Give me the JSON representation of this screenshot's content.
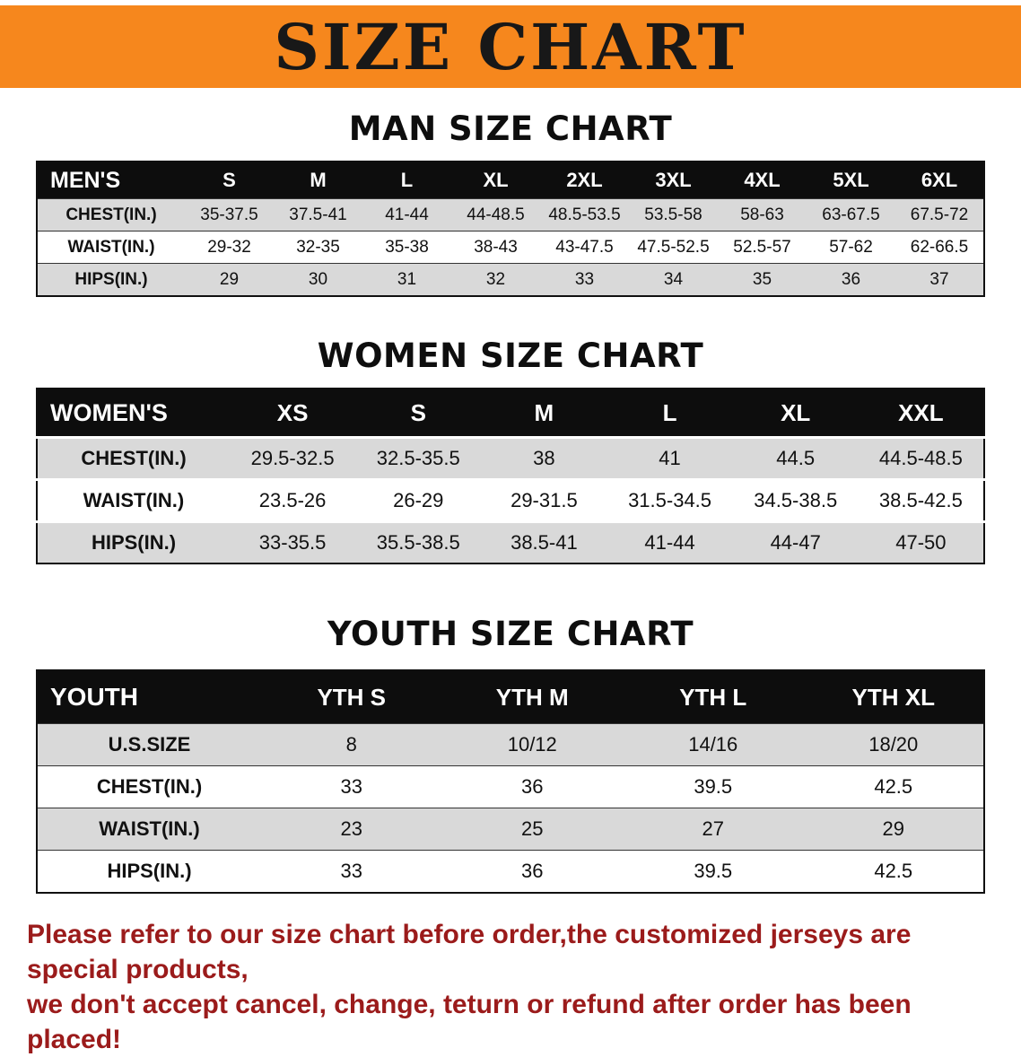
{
  "banner": {
    "title": "SIZE CHART",
    "bg_color": "#F6871D",
    "text_color": "#181818"
  },
  "sections": [
    {
      "id": "men",
      "heading": "MAN SIZE CHART",
      "table": {
        "header": [
          "MEN'S",
          "S",
          "M",
          "L",
          "XL",
          "2XL",
          "3XL",
          "4XL",
          "5XL",
          "6XL"
        ],
        "rows": [
          [
            "CHEST(IN.)",
            "35-37.5",
            "37.5-41",
            "41-44",
            "44-48.5",
            "48.5-53.5",
            "53.5-58",
            "58-63",
            "63-67.5",
            "67.5-72"
          ],
          [
            "WAIST(IN.)",
            "29-32",
            "32-35",
            "35-38",
            "38-43",
            "43-47.5",
            "47.5-52.5",
            "52.5-57",
            "57-62",
            "62-66.5"
          ],
          [
            "HIPS(IN.)",
            "29",
            "30",
            "31",
            "32",
            "33",
            "34",
            "35",
            "36",
            "37"
          ]
        ]
      }
    },
    {
      "id": "women",
      "heading": "WOMEN SIZE CHART",
      "table": {
        "header": [
          "WOMEN'S",
          "XS",
          "S",
          "M",
          "L",
          "XL",
          "XXL"
        ],
        "rows": [
          [
            "CHEST(IN.)",
            "29.5-32.5",
            "32.5-35.5",
            "38",
            "41",
            "44.5",
            "44.5-48.5"
          ],
          [
            "WAIST(IN.)",
            "23.5-26",
            "26-29",
            "29-31.5",
            "31.5-34.5",
            "34.5-38.5",
            "38.5-42.5"
          ],
          [
            "HIPS(IN.)",
            "33-35.5",
            "35.5-38.5",
            "38.5-41",
            "41-44",
            "44-47",
            "47-50"
          ]
        ]
      }
    },
    {
      "id": "youth",
      "heading": "YOUTH SIZE CHART",
      "table": {
        "header": [
          "YOUTH",
          "YTH S",
          "YTH M",
          "YTH L",
          "YTH XL"
        ],
        "rows": [
          [
            "U.S.SIZE",
            "8",
            "10/12",
            "14/16",
            "18/20"
          ],
          [
            "CHEST(IN.)",
            "33",
            "36",
            "39.5",
            "42.5"
          ],
          [
            "WAIST(IN.)",
            "23",
            "25",
            "27",
            "29"
          ],
          [
            "HIPS(IN.)",
            "33",
            "36",
            "39.5",
            "42.5"
          ]
        ]
      }
    }
  ],
  "footer": {
    "text_color": "#9b1b1b",
    "lines": [
      "Please refer to our size chart before order,the customized jerseys are special products,",
      "we don't accept cancel, change, teturn or refund after order has been placed!"
    ]
  }
}
